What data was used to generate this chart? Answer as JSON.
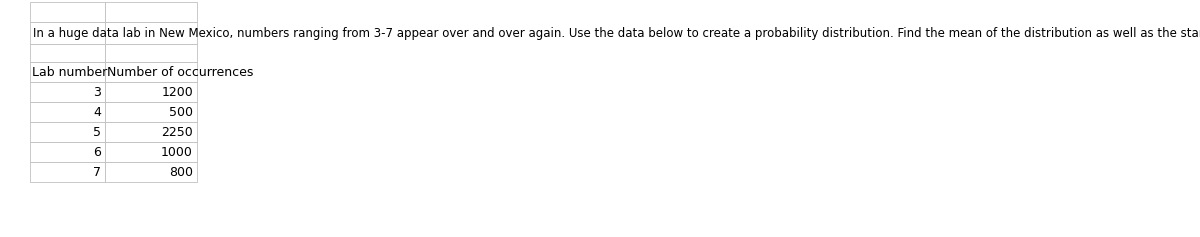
{
  "title_text": "In a huge data lab in New Mexico, numbers ranging from 3-7 appear over and over again. Use the data below to create a probability distribution. Find the mean of the distribution as well as the standard deviation of the dist",
  "col_headers": [
    "Lab number",
    "Number of occurrences"
  ],
  "rows": [
    [
      "3",
      "1200"
    ],
    [
      "4",
      "500"
    ],
    [
      "5",
      "2250"
    ],
    [
      "6",
      "1000"
    ],
    [
      "7",
      "800"
    ]
  ],
  "bg_color": "#ffffff",
  "border_color": "#c0c0c0",
  "text_color": "#000000",
  "title_fontsize": 8.5,
  "table_fontsize": 9.0,
  "header_fontsize": 9.0
}
